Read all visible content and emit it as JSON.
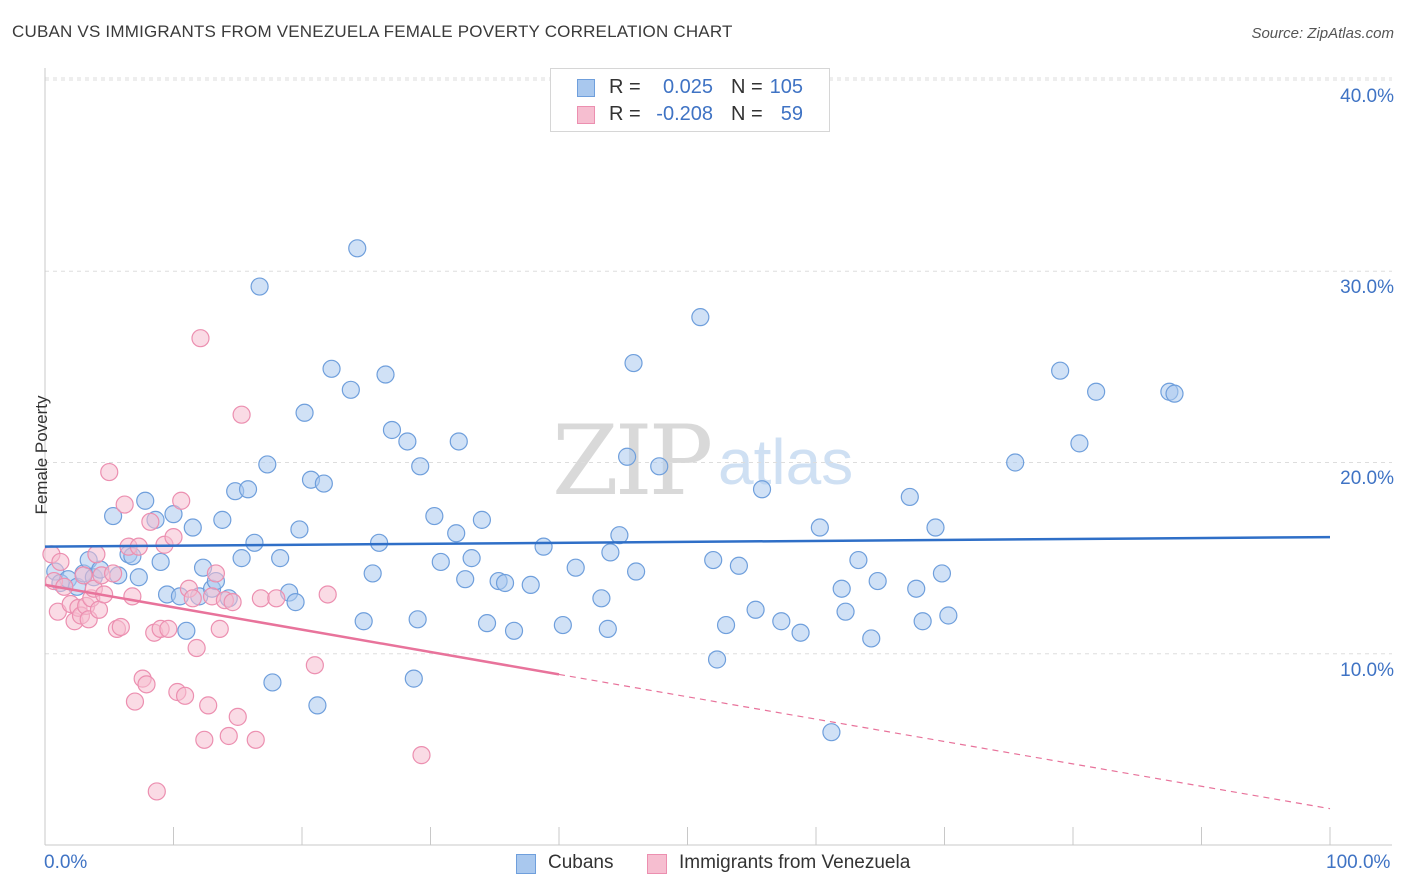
{
  "header": {
    "title": "CUBAN VS IMMIGRANTS FROM VENEZUELA FEMALE POVERTY CORRELATION CHART",
    "source": "Source: ZipAtlas.com"
  },
  "watermark": {
    "zip": "ZIP",
    "atlas": "atlas"
  },
  "stats": {
    "row1": {
      "r_label": "R =",
      "r_value": "0.025",
      "n_label": "N =",
      "n_value": "105"
    },
    "row2": {
      "r_label": "R =",
      "r_value": "-0.208",
      "n_label": "N =",
      "n_value": "59"
    }
  },
  "legend": {
    "series1": "Cubans",
    "series2": "Immigrants from Venezuela"
  },
  "colors": {
    "cubans_fill": "#a9c8ee",
    "cubans_stroke": "#6f9fdc",
    "cubans_line": "#2f6fc7",
    "venezuela_fill": "#f6bed0",
    "venezuela_stroke": "#ec8fb0",
    "venezuela_line": "#e8739b",
    "tick_text": "#3f73c4",
    "grid": "#dddddd"
  },
  "chart_data": {
    "type": "scatter",
    "title": "CUBAN VS IMMIGRANTS FROM VENEZUELA FEMALE POVERTY CORRELATION CHART",
    "xlabel": "",
    "ylabel": "Female Poverty",
    "xlim": [
      0,
      100
    ],
    "ylim": [
      0,
      40
    ],
    "x_tick_labels": [
      "0.0%",
      "100.0%"
    ],
    "y_ticks": [
      10,
      20,
      30,
      40
    ],
    "y_tick_labels": [
      "10.0%",
      "20.0%",
      "30.0%",
      "40.0%"
    ],
    "grid": true,
    "legend_position": "bottom",
    "series": [
      {
        "name": "Cubans",
        "r": 0.025,
        "n": 105,
        "trend": {
          "x": [
            0,
            100
          ],
          "y": [
            15.6,
            16.1
          ]
        },
        "points": [
          [
            0.8,
            14.3
          ],
          [
            1.2,
            13.7
          ],
          [
            1.8,
            13.9
          ],
          [
            2.5,
            13.5
          ],
          [
            3.0,
            14.2
          ],
          [
            3.4,
            14.9
          ],
          [
            3.8,
            14.0
          ],
          [
            4.3,
            14.4
          ],
          [
            5.3,
            17.2
          ],
          [
            5.7,
            14.1
          ],
          [
            6.5,
            15.2
          ],
          [
            6.8,
            15.1
          ],
          [
            7.3,
            14.0
          ],
          [
            7.8,
            18.0
          ],
          [
            8.6,
            17.0
          ],
          [
            9.0,
            14.8
          ],
          [
            9.5,
            13.1
          ],
          [
            10.0,
            17.3
          ],
          [
            10.5,
            13.0
          ],
          [
            11.0,
            11.2
          ],
          [
            11.5,
            16.6
          ],
          [
            12.0,
            13.0
          ],
          [
            12.3,
            14.5
          ],
          [
            13.0,
            13.4
          ],
          [
            13.3,
            13.8
          ],
          [
            13.8,
            17.0
          ],
          [
            14.3,
            12.9
          ],
          [
            14.8,
            18.5
          ],
          [
            15.3,
            15.0
          ],
          [
            15.8,
            18.6
          ],
          [
            16.3,
            15.8
          ],
          [
            16.7,
            29.2
          ],
          [
            17.3,
            19.9
          ],
          [
            17.7,
            8.5
          ],
          [
            18.3,
            15.0
          ],
          [
            19.0,
            13.2
          ],
          [
            19.5,
            12.7
          ],
          [
            19.8,
            16.5
          ],
          [
            20.2,
            22.6
          ],
          [
            20.7,
            19.1
          ],
          [
            21.2,
            7.3
          ],
          [
            21.7,
            18.9
          ],
          [
            22.3,
            24.9
          ],
          [
            23.8,
            23.8
          ],
          [
            24.3,
            31.2
          ],
          [
            24.8,
            11.7
          ],
          [
            25.5,
            14.2
          ],
          [
            26.0,
            15.8
          ],
          [
            26.5,
            24.6
          ],
          [
            27.0,
            21.7
          ],
          [
            28.2,
            21.1
          ],
          [
            28.7,
            8.7
          ],
          [
            29.0,
            11.8
          ],
          [
            29.2,
            19.8
          ],
          [
            30.3,
            17.2
          ],
          [
            30.8,
            14.8
          ],
          [
            32.0,
            16.3
          ],
          [
            32.2,
            21.1
          ],
          [
            32.7,
            13.9
          ],
          [
            33.2,
            15.0
          ],
          [
            34.0,
            17.0
          ],
          [
            34.4,
            11.6
          ],
          [
            35.3,
            13.8
          ],
          [
            35.8,
            13.7
          ],
          [
            36.5,
            11.2
          ],
          [
            37.8,
            13.6
          ],
          [
            38.8,
            15.6
          ],
          [
            40.3,
            11.5
          ],
          [
            41.3,
            14.5
          ],
          [
            43.3,
            12.9
          ],
          [
            43.8,
            11.3
          ],
          [
            44.0,
            15.3
          ],
          [
            44.7,
            16.2
          ],
          [
            45.3,
            20.3
          ],
          [
            45.8,
            25.2
          ],
          [
            46.0,
            14.3
          ],
          [
            47.8,
            19.8
          ],
          [
            51.0,
            27.6
          ],
          [
            52.0,
            14.9
          ],
          [
            52.3,
            9.7
          ],
          [
            53.0,
            11.5
          ],
          [
            54.0,
            14.6
          ],
          [
            55.3,
            12.3
          ],
          [
            55.8,
            18.6
          ],
          [
            57.3,
            11.7
          ],
          [
            58.8,
            11.1
          ],
          [
            60.3,
            16.6
          ],
          [
            61.2,
            5.9
          ],
          [
            62.0,
            13.4
          ],
          [
            62.3,
            12.2
          ],
          [
            63.3,
            14.9
          ],
          [
            64.3,
            10.8
          ],
          [
            64.8,
            13.8
          ],
          [
            67.3,
            18.2
          ],
          [
            67.8,
            13.4
          ],
          [
            68.3,
            11.7
          ],
          [
            69.3,
            16.6
          ],
          [
            69.8,
            14.2
          ],
          [
            70.3,
            12.0
          ],
          [
            75.5,
            20.0
          ],
          [
            79.0,
            24.8
          ],
          [
            80.5,
            21.0
          ],
          [
            81.8,
            23.7
          ],
          [
            87.5,
            23.7
          ],
          [
            87.9,
            23.6
          ]
        ]
      },
      {
        "name": "Immigrants from Venezuela",
        "r": -0.208,
        "n": 59,
        "trend": {
          "x": [
            0,
            100
          ],
          "y": [
            13.6,
            1.9
          ]
        },
        "trend_solid_until_x": 40,
        "points": [
          [
            0.5,
            15.2
          ],
          [
            0.7,
            13.8
          ],
          [
            1.0,
            12.2
          ],
          [
            1.2,
            14.8
          ],
          [
            1.5,
            13.5
          ],
          [
            2.0,
            12.6
          ],
          [
            2.3,
            11.7
          ],
          [
            2.6,
            12.4
          ],
          [
            2.8,
            12.0
          ],
          [
            3.0,
            14.1
          ],
          [
            3.2,
            12.5
          ],
          [
            3.4,
            11.8
          ],
          [
            3.6,
            12.9
          ],
          [
            3.8,
            13.4
          ],
          [
            4.0,
            15.2
          ],
          [
            4.2,
            12.3
          ],
          [
            4.4,
            14.1
          ],
          [
            4.6,
            13.1
          ],
          [
            5.0,
            19.5
          ],
          [
            5.3,
            14.2
          ],
          [
            5.6,
            11.3
          ],
          [
            5.9,
            11.4
          ],
          [
            6.2,
            17.8
          ],
          [
            6.5,
            15.6
          ],
          [
            6.8,
            13.0
          ],
          [
            7.0,
            7.5
          ],
          [
            7.3,
            15.6
          ],
          [
            7.6,
            8.7
          ],
          [
            7.9,
            8.4
          ],
          [
            8.2,
            16.9
          ],
          [
            8.5,
            11.1
          ],
          [
            8.7,
            2.8
          ],
          [
            9.0,
            11.3
          ],
          [
            9.3,
            15.7
          ],
          [
            9.6,
            11.3
          ],
          [
            10.0,
            16.1
          ],
          [
            10.3,
            8.0
          ],
          [
            10.6,
            18.0
          ],
          [
            10.9,
            7.8
          ],
          [
            11.2,
            13.4
          ],
          [
            11.5,
            12.9
          ],
          [
            11.8,
            10.3
          ],
          [
            12.1,
            26.5
          ],
          [
            12.4,
            5.5
          ],
          [
            12.7,
            7.3
          ],
          [
            13.0,
            13.0
          ],
          [
            13.3,
            14.2
          ],
          [
            13.6,
            11.3
          ],
          [
            14.0,
            12.8
          ],
          [
            14.3,
            5.7
          ],
          [
            14.6,
            12.7
          ],
          [
            15.0,
            6.7
          ],
          [
            15.3,
            22.5
          ],
          [
            16.4,
            5.5
          ],
          [
            16.8,
            12.9
          ],
          [
            18.0,
            12.9
          ],
          [
            21.0,
            9.4
          ],
          [
            22.0,
            13.1
          ],
          [
            29.3,
            4.7
          ]
        ]
      }
    ]
  }
}
